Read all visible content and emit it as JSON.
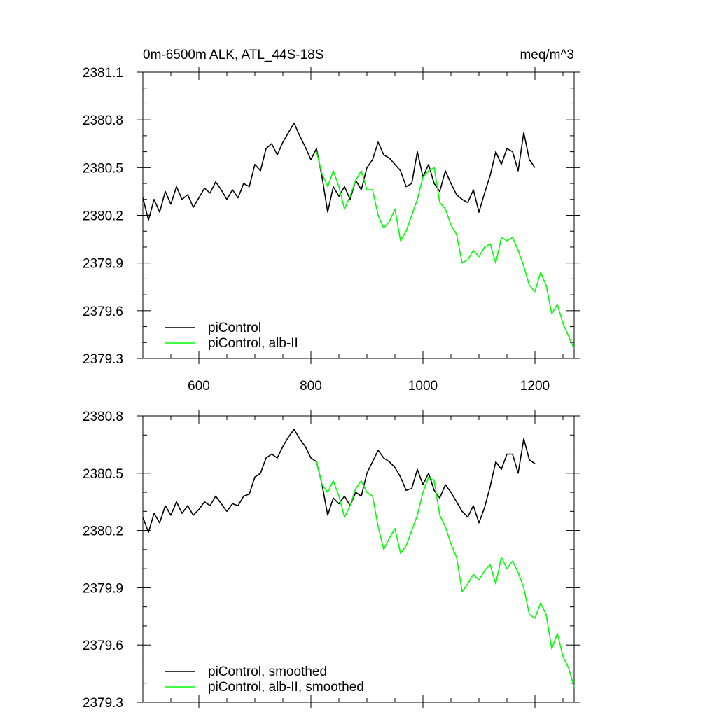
{
  "header": {
    "title_left": "0m-6500m ALK, ATL_44S-18S",
    "title_right": "meq/m^3"
  },
  "chart_data": [
    {
      "type": "line",
      "xlim": [
        500,
        1270
      ],
      "ylim": [
        2379.3,
        2381.1
      ],
      "xticks": [
        600,
        800,
        1000,
        1200
      ],
      "xtick_labels": [
        "600",
        "800",
        "1000",
        "1200"
      ],
      "yticks": [
        2379.3,
        2379.6,
        2379.9,
        2380.2,
        2380.5,
        2380.8,
        2381.1
      ],
      "ytick_labels": [
        "2379.3",
        "2379.6",
        "2379.9",
        "2380.2",
        "2380.5",
        "2380.8",
        "2381.1"
      ],
      "grid": false,
      "legend_position": "bottom-left",
      "series": [
        {
          "name": "piControl",
          "color": "#000000",
          "x": [
            500,
            510,
            520,
            530,
            540,
            550,
            560,
            570,
            580,
            590,
            600,
            610,
            620,
            630,
            640,
            650,
            660,
            670,
            680,
            690,
            700,
            710,
            720,
            730,
            740,
            750,
            760,
            770,
            780,
            790,
            800,
            810,
            820,
            830,
            840,
            850,
            860,
            870,
            880,
            890,
            900,
            910,
            920,
            930,
            940,
            950,
            960,
            970,
            980,
            990,
            1000,
            1010,
            1020,
            1030,
            1040,
            1050,
            1060,
            1070,
            1080,
            1090,
            1100,
            1110,
            1120,
            1130,
            1140,
            1150,
            1160,
            1170,
            1180,
            1190,
            1200
          ],
          "values": [
            2380.31,
            2380.17,
            2380.3,
            2380.22,
            2380.35,
            2380.27,
            2380.38,
            2380.3,
            2380.33,
            2380.25,
            2380.31,
            2380.37,
            2380.34,
            2380.41,
            2380.36,
            2380.3,
            2380.36,
            2380.31,
            2380.4,
            2380.38,
            2380.52,
            2380.48,
            2380.62,
            2380.65,
            2380.58,
            2380.66,
            2380.72,
            2380.78,
            2380.7,
            2380.63,
            2380.55,
            2380.62,
            2380.44,
            2380.22,
            2380.38,
            2380.32,
            2380.38,
            2380.3,
            2380.42,
            2380.36,
            2380.5,
            2380.55,
            2380.66,
            2380.58,
            2380.56,
            2380.52,
            2380.48,
            2380.38,
            2380.4,
            2380.6,
            2380.44,
            2380.52,
            2380.4,
            2380.35,
            2380.48,
            2380.4,
            2380.33,
            2380.3,
            2380.28,
            2380.36,
            2380.22,
            2380.34,
            2380.45,
            2380.6,
            2380.52,
            2380.62,
            2380.6,
            2380.48,
            2380.72,
            2380.55,
            2380.5
          ]
        },
        {
          "name": "piControl, alb-II",
          "color": "#00ff00",
          "x": [
            810,
            820,
            830,
            840,
            850,
            860,
            870,
            880,
            890,
            900,
            910,
            920,
            930,
            940,
            950,
            960,
            970,
            980,
            990,
            1000,
            1010,
            1020,
            1030,
            1040,
            1050,
            1060,
            1070,
            1080,
            1090,
            1100,
            1110,
            1120,
            1130,
            1140,
            1150,
            1160,
            1170,
            1180,
            1190,
            1200,
            1210,
            1220,
            1230,
            1240,
            1250,
            1260,
            1270
          ],
          "values": [
            2380.6,
            2380.46,
            2380.38,
            2380.48,
            2380.38,
            2380.24,
            2380.32,
            2380.42,
            2380.48,
            2380.36,
            2380.36,
            2380.2,
            2380.12,
            2380.16,
            2380.24,
            2380.04,
            2380.1,
            2380.2,
            2380.3,
            2380.44,
            2380.48,
            2380.5,
            2380.28,
            2380.24,
            2380.14,
            2380.08,
            2379.9,
            2379.92,
            2379.98,
            2379.94,
            2380.0,
            2380.02,
            2379.9,
            2380.06,
            2380.04,
            2380.06,
            2379.98,
            2379.88,
            2379.76,
            2379.72,
            2379.84,
            2379.76,
            2379.58,
            2379.64,
            2379.52,
            2379.44,
            2379.36
          ]
        }
      ]
    },
    {
      "type": "line",
      "xlim": [
        500,
        1270
      ],
      "ylim": [
        2379.3,
        2380.8
      ],
      "xticks": [
        600,
        800,
        1000,
        1200
      ],
      "yticks": [
        2379.3,
        2379.6,
        2379.9,
        2380.2,
        2380.5,
        2380.8
      ],
      "ytick_labels": [
        "2379.3",
        "2379.6",
        "2379.9",
        "2380.2",
        "2380.5",
        "2380.8"
      ],
      "grid": false,
      "legend_position": "bottom-left",
      "series": [
        {
          "name": "piControl, smoothed",
          "color": "#000000",
          "x": [
            500,
            510,
            520,
            530,
            540,
            550,
            560,
            570,
            580,
            590,
            600,
            610,
            620,
            630,
            640,
            650,
            660,
            670,
            680,
            690,
            700,
            710,
            720,
            730,
            740,
            750,
            760,
            770,
            780,
            790,
            800,
            810,
            820,
            830,
            840,
            850,
            860,
            870,
            880,
            890,
            900,
            910,
            920,
            930,
            940,
            950,
            960,
            970,
            980,
            990,
            1000,
            1010,
            1020,
            1030,
            1040,
            1050,
            1060,
            1070,
            1080,
            1090,
            1100,
            1110,
            1120,
            1130,
            1140,
            1150,
            1160,
            1170,
            1180,
            1190,
            1200
          ],
          "values": [
            2380.27,
            2380.19,
            2380.29,
            2380.24,
            2380.33,
            2380.28,
            2380.35,
            2380.29,
            2380.33,
            2380.28,
            2380.31,
            2380.35,
            2380.33,
            2380.38,
            2380.34,
            2380.3,
            2380.34,
            2380.33,
            2380.38,
            2380.39,
            2380.48,
            2380.5,
            2380.58,
            2380.6,
            2380.58,
            2380.64,
            2380.69,
            2380.73,
            2380.68,
            2380.64,
            2380.58,
            2380.56,
            2380.44,
            2380.28,
            2380.37,
            2380.34,
            2380.38,
            2380.33,
            2380.4,
            2380.38,
            2380.5,
            2380.56,
            2380.62,
            2380.58,
            2380.56,
            2380.53,
            2380.48,
            2380.41,
            2380.42,
            2380.52,
            2380.44,
            2380.5,
            2380.41,
            2380.37,
            2380.44,
            2380.4,
            2380.35,
            2380.3,
            2380.27,
            2380.33,
            2380.24,
            2380.32,
            2380.43,
            2380.56,
            2380.52,
            2380.6,
            2380.6,
            2380.5,
            2380.68,
            2380.57,
            2380.55
          ]
        },
        {
          "name": "piControl, alb-II, smoothed",
          "color": "#00ff00",
          "x": [
            810,
            820,
            830,
            840,
            850,
            860,
            870,
            880,
            890,
            900,
            910,
            920,
            930,
            940,
            950,
            960,
            970,
            980,
            990,
            1000,
            1010,
            1020,
            1030,
            1040,
            1050,
            1060,
            1070,
            1080,
            1090,
            1100,
            1110,
            1120,
            1130,
            1140,
            1150,
            1160,
            1170,
            1180,
            1190,
            1200,
            1210,
            1220,
            1230,
            1240,
            1250,
            1260,
            1270
          ],
          "values": [
            2380.56,
            2380.44,
            2380.4,
            2380.46,
            2380.38,
            2380.27,
            2380.33,
            2380.42,
            2380.46,
            2380.4,
            2380.38,
            2380.22,
            2380.1,
            2380.16,
            2380.21,
            2380.08,
            2380.12,
            2380.2,
            2380.28,
            2380.4,
            2380.48,
            2380.46,
            2380.28,
            2380.22,
            2380.13,
            2380.06,
            2379.88,
            2379.92,
            2379.97,
            2379.94,
            2379.99,
            2380.02,
            2379.92,
            2380.06,
            2380.0,
            2380.04,
            2379.98,
            2379.9,
            2379.76,
            2379.74,
            2379.82,
            2379.76,
            2379.58,
            2379.66,
            2379.54,
            2379.48,
            2379.38
          ]
        }
      ]
    }
  ]
}
